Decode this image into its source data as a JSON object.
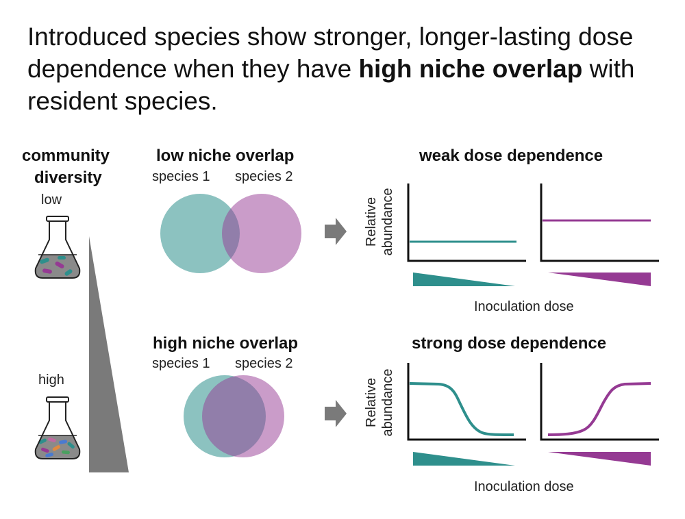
{
  "headline": {
    "part1": "Introduced species show stronger, longer-lasting dose dependence when they have ",
    "bold": "high niche overlap",
    "part2": " with resident species."
  },
  "diversity": {
    "title_line1": "community",
    "title_line2": "diversity",
    "low_label": "low",
    "high_label": "high"
  },
  "low_overlap": {
    "title": "low niche overlap",
    "species1": "species 1",
    "species2": "species 2",
    "result_title": "weak dose dependence",
    "y_label_line1": "Relative",
    "y_label_line2": "abundance",
    "x_label": "Inoculation dose"
  },
  "high_overlap": {
    "title": "high niche overlap",
    "species1": "species 1",
    "species2": "species 2",
    "result_title": "strong dose dependence",
    "y_label_line1": "Relative",
    "y_label_line2": "abundance",
    "x_label": "Inoculation dose"
  },
  "colors": {
    "teal": "#2e8f8c",
    "teal_light": "#8cc7c4",
    "purple": "#953a93",
    "purple_light": "#c796c6",
    "gray": "#7a7a7a"
  }
}
